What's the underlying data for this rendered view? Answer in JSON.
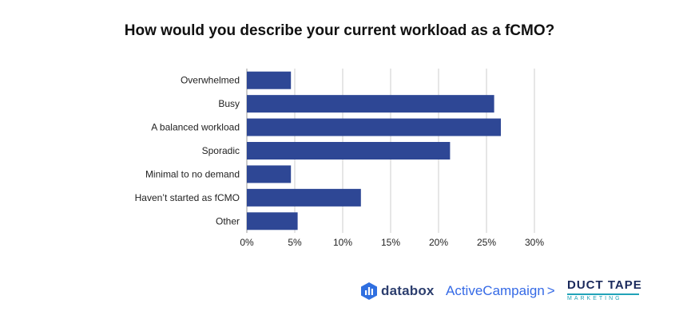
{
  "chart_data": {
    "type": "bar",
    "orientation": "horizontal",
    "title": "How would you describe your current workload as a fCMO?",
    "categories": [
      "Overwhelmed",
      "Busy",
      "A balanced workload",
      "Sporadic",
      "Minimal to no demand",
      "Haven’t started as fCMO",
      "Other"
    ],
    "values": [
      4.6,
      25.8,
      26.5,
      21.2,
      4.6,
      11.9,
      5.3
    ],
    "unit": "%",
    "xlim": [
      0,
      30
    ],
    "xticks": [
      "0%",
      "5%",
      "10%",
      "15%",
      "20%",
      "25%",
      "30%"
    ],
    "grid": true,
    "bar_color": "#2e4795",
    "grid_color": "#cccccc"
  },
  "logos": {
    "databox": "databox",
    "activecampaign": "ActiveCampaign",
    "activecampaign_chevron": ">",
    "ducttape_top": "DUCT TAPE",
    "ducttape_bottom": "MARKETING"
  },
  "colors": {
    "databox": "#2c3e6e",
    "activecampaign": "#356ae6",
    "ducttape_navy": "#1b2a5c",
    "ducttape_teal": "#21a3b8"
  }
}
